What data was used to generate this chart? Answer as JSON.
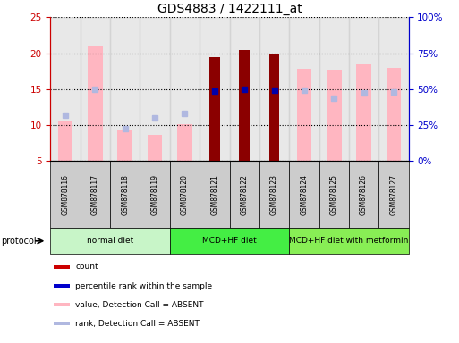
{
  "title": "GDS4883 / 1422111_at",
  "samples": [
    "GSM878116",
    "GSM878117",
    "GSM878118",
    "GSM878119",
    "GSM878120",
    "GSM878121",
    "GSM878122",
    "GSM878123",
    "GSM878124",
    "GSM878125",
    "GSM878126",
    "GSM878127"
  ],
  "count_values": [
    null,
    null,
    null,
    null,
    null,
    19.5,
    20.4,
    19.8,
    null,
    null,
    null,
    null
  ],
  "percentile_values": [
    null,
    null,
    null,
    null,
    null,
    14.7,
    15.0,
    14.9,
    null,
    null,
    null,
    null
  ],
  "value_absent": [
    10.5,
    21.0,
    9.3,
    8.7,
    10.2,
    null,
    null,
    null,
    17.8,
    17.7,
    18.4,
    18.0
  ],
  "rank_absent": [
    11.4,
    15.0,
    9.5,
    11.0,
    11.6,
    null,
    null,
    null,
    14.8,
    13.7,
    14.5,
    14.6
  ],
  "ylim_left": [
    5,
    25
  ],
  "ylim_right": [
    0,
    100
  ],
  "yticks_left": [
    5,
    10,
    15,
    20,
    25
  ],
  "yticks_right": [
    0,
    25,
    50,
    75,
    100
  ],
  "ytick_labels_right": [
    "0%",
    "25%",
    "50%",
    "75%",
    "100%"
  ],
  "protocol_groups": [
    {
      "label": "normal diet",
      "start": 0,
      "end": 4,
      "color": "#c8f5c8"
    },
    {
      "label": "MCD+HF diet",
      "start": 4,
      "end": 8,
      "color": "#44ee44"
    },
    {
      "label": "MCD+HF diet with metformin",
      "start": 8,
      "end": 12,
      "color": "#88ee55"
    }
  ],
  "bar_color_count": "#8b0000",
  "bar_color_value_absent": "#ffb6c1",
  "bar_color_rank_absent": "#b0b8e0",
  "dot_color_percentile": "#0000aa",
  "bg_color": "#ffffff",
  "left_axis_color": "#cc0000",
  "right_axis_color": "#0000cc",
  "label_bg": "#cccccc",
  "legend_items": [
    {
      "color": "#cc0000",
      "label": "count"
    },
    {
      "color": "#0000cc",
      "label": "percentile rank within the sample"
    },
    {
      "color": "#ffb6c1",
      "label": "value, Detection Call = ABSENT"
    },
    {
      "color": "#b0b8e0",
      "label": "rank, Detection Call = ABSENT"
    }
  ]
}
